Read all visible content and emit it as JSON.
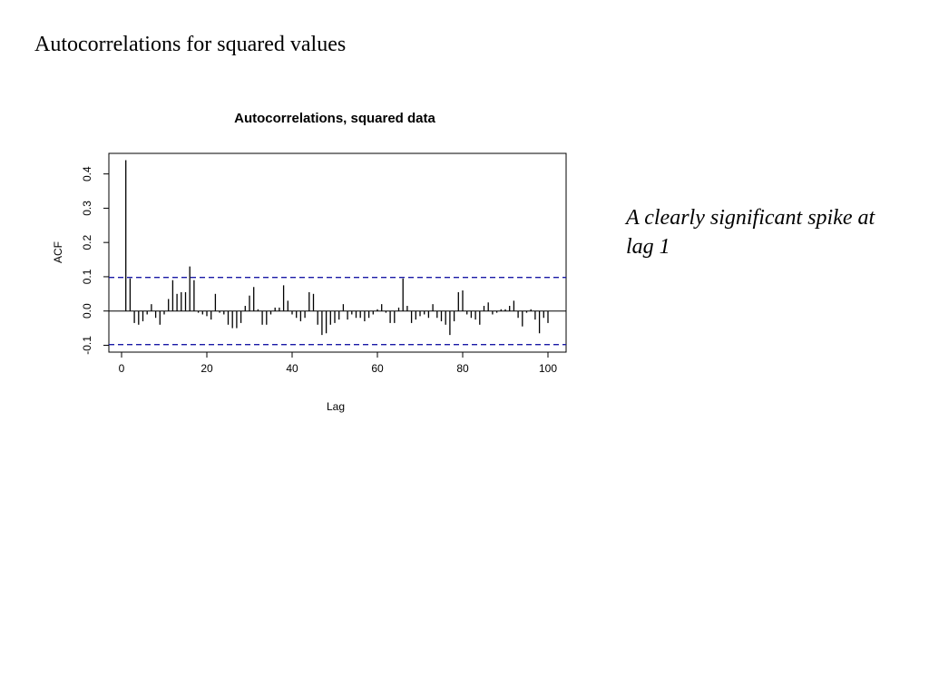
{
  "slide": {
    "title": "Autocorrelations for squared values",
    "annotation": "A clearly significant spike at lag 1"
  },
  "colors": {
    "bars": "#000000",
    "confidence_band": "#1a1aa6",
    "axis": "#000000"
  },
  "chart_data": {
    "type": "bar",
    "title": "Autocorrelations, squared data",
    "xlabel": "Lag",
    "ylabel": "ACF",
    "xlim": [
      0,
      100
    ],
    "ylim": [
      -0.12,
      0.46
    ],
    "xticks": [
      0,
      20,
      40,
      60,
      80,
      100
    ],
    "yticks": [
      -0.1,
      0.0,
      0.1,
      0.2,
      0.3,
      0.4
    ],
    "ytick_labels": [
      "-0.1",
      "0.0",
      "0.1",
      "0.2",
      "0.3",
      "0.4"
    ],
    "confidence_bounds": [
      -0.098,
      0.098
    ],
    "grid": false,
    "lags": [
      1,
      2,
      3,
      4,
      5,
      6,
      7,
      8,
      9,
      10,
      11,
      12,
      13,
      14,
      15,
      16,
      17,
      18,
      19,
      20,
      21,
      22,
      23,
      24,
      25,
      26,
      27,
      28,
      29,
      30,
      31,
      32,
      33,
      34,
      35,
      36,
      37,
      38,
      39,
      40,
      41,
      42,
      43,
      44,
      45,
      46,
      47,
      48,
      49,
      50,
      51,
      52,
      53,
      54,
      55,
      56,
      57,
      58,
      59,
      60,
      61,
      62,
      63,
      64,
      65,
      66,
      67,
      68,
      69,
      70,
      71,
      72,
      73,
      74,
      75,
      76,
      77,
      78,
      79,
      80,
      81,
      82,
      83,
      84,
      85,
      86,
      87,
      88,
      89,
      90,
      91,
      92,
      93,
      94,
      95,
      96,
      97,
      98,
      99,
      100
    ],
    "values": [
      0.44,
      0.095,
      -0.035,
      -0.04,
      -0.03,
      -0.01,
      0.02,
      -0.02,
      -0.04,
      -0.01,
      0.035,
      0.09,
      0.05,
      0.055,
      0.055,
      0.13,
      0.09,
      -0.005,
      -0.01,
      -0.015,
      -0.025,
      0.05,
      -0.005,
      -0.01,
      -0.04,
      -0.05,
      -0.05,
      -0.035,
      0.015,
      0.045,
      0.07,
      0.005,
      -0.04,
      -0.04,
      -0.01,
      0.01,
      0.01,
      0.075,
      0.03,
      -0.01,
      -0.02,
      -0.03,
      -0.02,
      0.055,
      0.05,
      -0.04,
      -0.07,
      -0.065,
      -0.04,
      -0.035,
      -0.025,
      0.02,
      -0.025,
      -0.01,
      -0.02,
      -0.02,
      -0.03,
      -0.02,
      -0.01,
      0.005,
      0.02,
      -0.005,
      -0.035,
      -0.035,
      0.01,
      0.095,
      0.015,
      -0.035,
      -0.025,
      -0.015,
      -0.01,
      -0.02,
      0.02,
      -0.02,
      -0.03,
      -0.04,
      -0.07,
      -0.03,
      0.055,
      0.06,
      -0.01,
      -0.02,
      -0.025,
      -0.04,
      0.015,
      0.025,
      -0.01,
      -0.005,
      0.005,
      0.005,
      0.015,
      0.03,
      -0.02,
      -0.045,
      -0.005,
      0.005,
      -0.025,
      -0.065,
      -0.02,
      -0.035
    ]
  }
}
